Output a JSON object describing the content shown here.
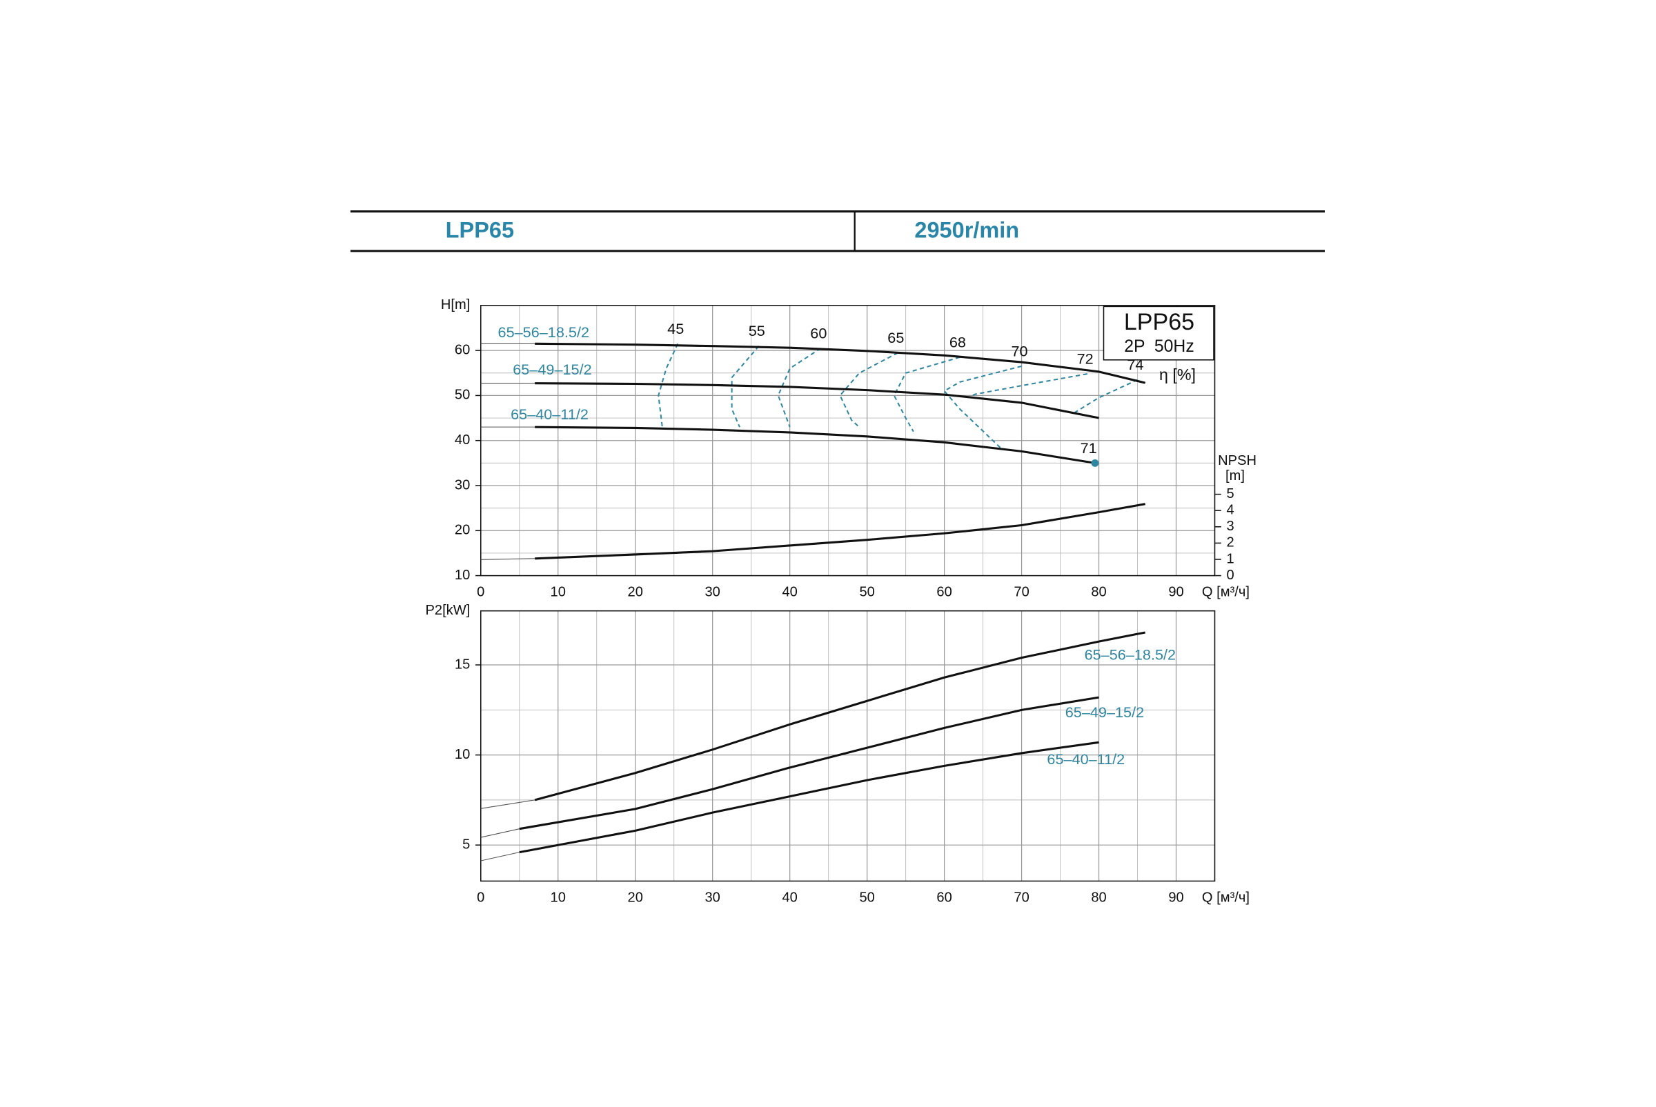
{
  "header": {
    "model": "LPP65",
    "speed": "2950r/min"
  },
  "chart_data": [
    {
      "type": "line",
      "y_label": "H[m]",
      "x_label": "Q [м³/ч]",
      "y2_label": "NPSH",
      "y2_unit": "[m]",
      "box_title": "LPP65",
      "box_subtitle": "2P  50Hz",
      "efficiency_label": "η [%]",
      "xlim": [
        0,
        95
      ],
      "xticks": [
        0,
        10,
        20,
        30,
        40,
        50,
        60,
        70,
        80,
        90
      ],
      "ylim": [
        10,
        70
      ],
      "yticks": [
        10,
        20,
        30,
        40,
        50,
        60
      ],
      "y2lim": [
        0,
        16.6
      ],
      "y2ticks": [
        0,
        1,
        2,
        3,
        4,
        5
      ],
      "grid": true,
      "series": [
        {
          "name": "65–56–18.5/2",
          "color": "#111111",
          "x": [
            7,
            20,
            30,
            40,
            50,
            60,
            70,
            80,
            86
          ],
          "values": [
            61.5,
            61.3,
            61,
            60.6,
            59.9,
            58.9,
            57.4,
            55.3,
            52.8
          ]
        },
        {
          "name": "65–49–15/2",
          "color": "#111111",
          "x": [
            7,
            20,
            30,
            40,
            50,
            60,
            70,
            80
          ],
          "values": [
            52.7,
            52.6,
            52.3,
            51.9,
            51.2,
            50.2,
            48.4,
            45
          ]
        },
        {
          "name": "65–40–11/2",
          "color": "#111111",
          "x": [
            7,
            20,
            30,
            40,
            50,
            60,
            70,
            79.5
          ],
          "values": [
            43,
            42.8,
            42.4,
            41.8,
            40.9,
            39.6,
            37.6,
            35
          ]
        },
        {
          "color": "#111111",
          "axis": "y2",
          "x": [
            7,
            20,
            30,
            40,
            50,
            60,
            70,
            80,
            86
          ],
          "values": [
            1.05,
            1.3,
            1.5,
            1.85,
            2.2,
            2.6,
            3.1,
            3.9,
            4.4
          ]
        }
      ],
      "efficiency_curves": [
        {
          "name": "45",
          "color": "#2e86a0",
          "x": [
            25.5,
            24,
            23,
            23.5
          ],
          "values": [
            61.5,
            56,
            50,
            43
          ]
        },
        {
          "name": "55",
          "color": "#2e86a0",
          "x": [
            36,
            32.5,
            32.5,
            33.5
          ],
          "values": [
            61,
            54,
            47,
            43
          ]
        },
        {
          "name": "60",
          "color": "#2e86a0",
          "x": [
            44,
            40,
            38.5,
            40
          ],
          "values": [
            60.5,
            56,
            50,
            43
          ]
        },
        {
          "name": "65",
          "color": "#2e86a0",
          "x": [
            54,
            49,
            46.5,
            48,
            49
          ],
          "values": [
            59.5,
            55,
            50,
            44.5,
            43
          ]
        },
        {
          "name": "68",
          "color": "#2e86a0",
          "x": [
            62,
            55,
            53.5,
            55,
            56
          ],
          "values": [
            58.5,
            55,
            50,
            45,
            42
          ]
        },
        {
          "name": "70",
          "color": "#2e86a0",
          "x": [
            70,
            62,
            60,
            62,
            67.5
          ],
          "values": [
            56.5,
            53,
            51,
            47,
            38
          ]
        },
        {
          "name": "72",
          "color": "#2e86a0",
          "x": [
            78.5,
            70,
            64,
            63
          ],
          "values": [
            54.8,
            52.2,
            50.3,
            49.5
          ]
        },
        {
          "name": "74",
          "color": "#2e86a0",
          "x": [
            85,
            80,
            76.5
          ],
          "values": [
            53.5,
            49.5,
            45.8
          ]
        }
      ],
      "points": [
        {
          "x": 79.5,
          "y": 35,
          "label": "71",
          "color": "#2e86a0"
        }
      ]
    },
    {
      "type": "line",
      "y_label": "P2[kW]",
      "x_label": "Q [м³/ч]",
      "xlim": [
        0,
        95
      ],
      "xticks": [
        0,
        10,
        20,
        30,
        40,
        50,
        60,
        70,
        80,
        90
      ],
      "ylim": [
        3,
        18
      ],
      "yticks": [
        5,
        10,
        15
      ],
      "grid": true,
      "series": [
        {
          "name": "65–56–18.5/2",
          "color": "#111111",
          "x": [
            7,
            20,
            30,
            40,
            50,
            60,
            70,
            80,
            86
          ],
          "values": [
            7.5,
            9,
            10.3,
            11.7,
            13,
            14.3,
            15.4,
            16.3,
            16.8
          ]
        },
        {
          "name": "65–49–15/2",
          "color": "#111111",
          "x": [
            5,
            20,
            30,
            40,
            50,
            60,
            70,
            80
          ],
          "values": [
            5.9,
            7,
            8.1,
            9.3,
            10.4,
            11.5,
            12.5,
            13.2
          ]
        },
        {
          "name": "65–40–11/2",
          "color": "#111111",
          "x": [
            5,
            20,
            30,
            40,
            50,
            60,
            70,
            80
          ],
          "values": [
            4.6,
            5.8,
            6.8,
            7.7,
            8.6,
            9.4,
            10.1,
            10.7
          ]
        }
      ]
    }
  ]
}
